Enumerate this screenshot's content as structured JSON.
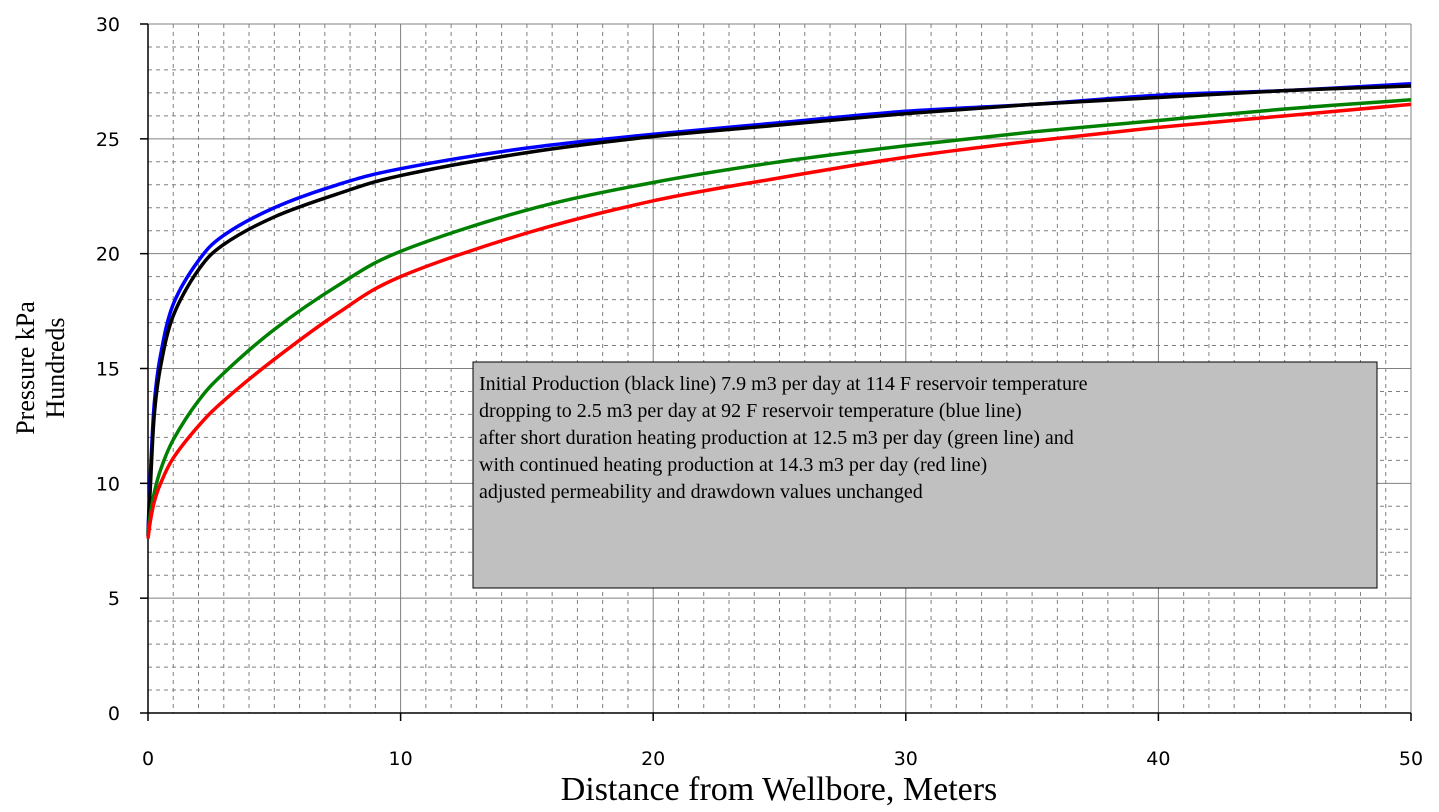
{
  "chart_data": {
    "type": "line",
    "title": "",
    "xlabel": "Distance from Wellbore, Meters",
    "ylabel_lines": [
      "Pressure kPa",
      "Hundreds"
    ],
    "xlim": [
      0,
      50
    ],
    "ylim": [
      0,
      30
    ],
    "x_ticks": [
      0,
      10,
      20,
      30,
      40,
      50
    ],
    "y_ticks": [
      0,
      5,
      10,
      15,
      20,
      25,
      30
    ],
    "x_tick_labels": [
      "0",
      "10",
      "20",
      "30",
      "40",
      "50"
    ],
    "y_tick_labels": [
      "0",
      "5",
      "10",
      "15",
      "20",
      "25",
      "30"
    ],
    "grid": "major solid, minor dashed",
    "legend": "none",
    "x": [
      0,
      0.1,
      0.25,
      0.5,
      1,
      2,
      3,
      5,
      7.5,
      10,
      15,
      20,
      25,
      30,
      35,
      40,
      45,
      50
    ],
    "series": [
      {
        "color": "#0000ff",
        "values": [
          7.9,
          10.5,
          13.5,
          15.6,
          17.8,
          19.7,
          20.8,
          22.0,
          23.0,
          23.7,
          24.6,
          25.2,
          25.7,
          26.2,
          26.5,
          26.9,
          27.1,
          27.4
        ]
      },
      {
        "color": "#000000",
        "values": [
          7.7,
          10.0,
          13.0,
          15.1,
          17.3,
          19.3,
          20.4,
          21.6,
          22.6,
          23.4,
          24.4,
          25.1,
          25.6,
          26.1,
          26.5,
          26.8,
          27.1,
          27.3
        ]
      },
      {
        "color": "#008000",
        "values": [
          7.9,
          8.7,
          9.6,
          10.6,
          11.9,
          13.6,
          14.8,
          16.7,
          18.6,
          20.1,
          21.9,
          23.1,
          24.0,
          24.7,
          25.3,
          25.8,
          26.3,
          26.7
        ]
      },
      {
        "color": "#ff0000",
        "values": [
          7.6,
          8.4,
          9.2,
          10.0,
          11.1,
          12.5,
          13.6,
          15.4,
          17.4,
          19.0,
          20.9,
          22.3,
          23.3,
          24.2,
          24.9,
          25.5,
          26.0,
          26.5
        ]
      }
    ],
    "annotation": {
      "lines": [
        "Initial Production (black line) 7.9 m3 per day at 114 F reservoir temperature",
        "dropping to 2.5 m3 per day at 92 F reservoir temperature (blue line)",
        "after short duration heating production at 12.5 m3 per day (green line) and",
        "with continued heating production at 14.3 m3 per day (red line)",
        "adjusted permeability and drawdown values unchanged"
      ],
      "background": "#c0c0c0"
    }
  }
}
